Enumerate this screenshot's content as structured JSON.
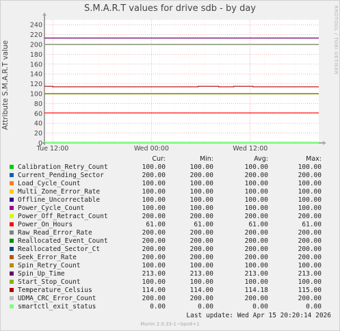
{
  "chart_data": {
    "type": "line",
    "title": "S.M.A.R.T values for drive sdb - by day",
    "ylabel": "Attribute S.M.A.R.T value",
    "ylim": [
      0,
      250
    ],
    "y_ticks": [
      0,
      20,
      40,
      60,
      80,
      100,
      120,
      140,
      160,
      180,
      200,
      220,
      240
    ],
    "x_tick_labels": [
      "Tue 12:00",
      "Wed 00:00",
      "Wed 12:00"
    ],
    "grid": true,
    "series": [
      {
        "name": "Calibration_Retry_Count",
        "color": "#00cc00",
        "cur": "100.00",
        "min": "100.00",
        "avg": "100.00",
        "max": "100.00"
      },
      {
        "name": "Current_Pending_Sector",
        "color": "#0066b3",
        "cur": "200.00",
        "min": "200.00",
        "avg": "200.00",
        "max": "200.00"
      },
      {
        "name": "Load_Cycle_Count",
        "color": "#ff8000",
        "cur": "100.00",
        "min": "100.00",
        "avg": "100.00",
        "max": "100.00"
      },
      {
        "name": "Multi_Zone_Error_Rate",
        "color": "#ffcc00",
        "cur": "100.00",
        "min": "100.00",
        "avg": "100.00",
        "max": "100.00"
      },
      {
        "name": "Offline_Uncorrectable",
        "color": "#330099",
        "cur": "100.00",
        "min": "100.00",
        "avg": "100.00",
        "max": "100.00"
      },
      {
        "name": "Power_Cycle_Count",
        "color": "#990099",
        "cur": "100.00",
        "min": "100.00",
        "avg": "100.00",
        "max": "100.00"
      },
      {
        "name": "Power_Off_Retract_Count",
        "color": "#ccff00",
        "cur": "200.00",
        "min": "200.00",
        "avg": "200.00",
        "max": "200.00"
      },
      {
        "name": "Power_On_Hours",
        "color": "#ff0000",
        "cur": "61.00",
        "min": "61.00",
        "avg": "61.00",
        "max": "61.00"
      },
      {
        "name": "Raw_Read_Error_Rate",
        "color": "#808080",
        "cur": "200.00",
        "min": "200.00",
        "avg": "200.00",
        "max": "200.00"
      },
      {
        "name": "Reallocated_Event_Count",
        "color": "#008f00",
        "cur": "200.00",
        "min": "200.00",
        "avg": "200.00",
        "max": "200.00"
      },
      {
        "name": "Reallocated_Sector_Ct",
        "color": "#00487d",
        "cur": "200.00",
        "min": "200.00",
        "avg": "200.00",
        "max": "200.00"
      },
      {
        "name": "Seek_Error_Rate",
        "color": "#b35a00",
        "cur": "200.00",
        "min": "200.00",
        "avg": "200.00",
        "max": "200.00"
      },
      {
        "name": "Spin_Retry_Count",
        "color": "#b38f00",
        "cur": "100.00",
        "min": "100.00",
        "avg": "100.00",
        "max": "100.00"
      },
      {
        "name": "Spin_Up_Time",
        "color": "#6b006b",
        "cur": "213.00",
        "min": "213.00",
        "avg": "213.00",
        "max": "213.00"
      },
      {
        "name": "Start_Stop_Count",
        "color": "#8fb300",
        "cur": "100.00",
        "min": "100.00",
        "avg": "100.00",
        "max": "100.00"
      },
      {
        "name": "Temperature_Celsius",
        "color": "#b30000",
        "cur": "114.00",
        "min": "114.00",
        "avg": "114.18",
        "max": "115.00"
      },
      {
        "name": "UDMA_CRC_Error_Count",
        "color": "#bebebe",
        "cur": "200.00",
        "min": "200.00",
        "avg": "200.00",
        "max": "200.00"
      },
      {
        "name": "smartctl_exit_status",
        "color": "#80ff80",
        "cur": "0.00",
        "min": "0.00",
        "avg": "0.00",
        "max": "0.00"
      }
    ],
    "temperature_profile": [
      {
        "from": 0.0,
        "to": 0.03,
        "value": 115
      },
      {
        "from": 0.03,
        "to": 0.56,
        "value": 114
      },
      {
        "from": 0.56,
        "to": 0.635,
        "value": 115
      },
      {
        "from": 0.635,
        "to": 0.69,
        "value": 114
      },
      {
        "from": 0.69,
        "to": 0.76,
        "value": 115
      },
      {
        "from": 0.76,
        "to": 1.0,
        "value": 114
      }
    ]
  },
  "legend_headers": {
    "cur": "Cur:",
    "min": "Min:",
    "avg": "Avg:",
    "max": "Max:"
  },
  "last_update": "Last update:  Wed Apr 15 20:20:14 2026",
  "footer": "Munin 2.0.33-1~bpo8+1",
  "watermark": "RRDTOOL / TOBI OETIKER"
}
